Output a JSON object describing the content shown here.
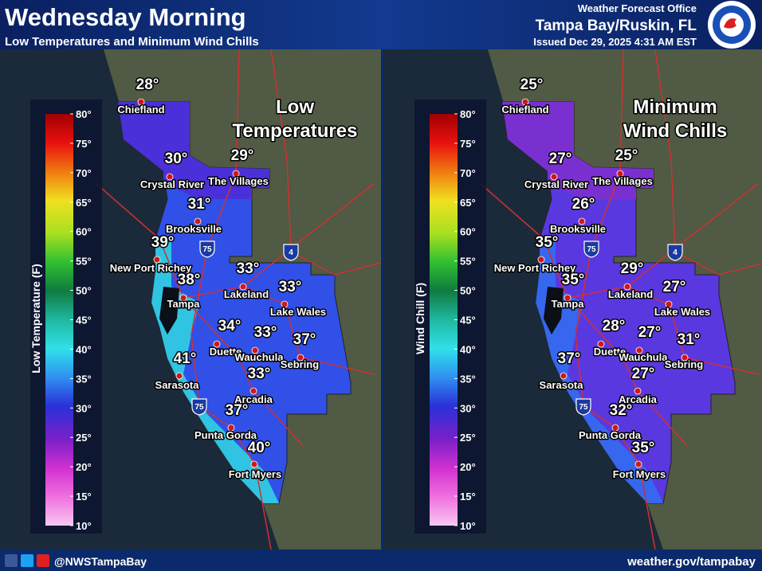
{
  "header": {
    "title": "Wednesday Morning",
    "subtitle": "Low Temperatures and Minimum Wind Chills",
    "office": "Weather Forecast Office",
    "location": "Tampa Bay/Ruskin, FL",
    "issued": "Issued Dec 29, 2025 4:31 AM EST"
  },
  "panels": [
    {
      "title_lines": [
        "Low",
        "Temperatures"
      ],
      "legend_label": "Low Temperature (F)",
      "legend_ticks": [
        "80°",
        "75°",
        "70°",
        "65°",
        "60°",
        "55°",
        "50°",
        "45°",
        "40°",
        "35°",
        "30°",
        "25°",
        "20°",
        "15°",
        "10°"
      ],
      "highway_shields": [
        "75",
        "4",
        "75"
      ],
      "cities": [
        {
          "name": "Chiefland",
          "value": "28°"
        },
        {
          "name": "Crystal River",
          "value": "30°"
        },
        {
          "name": "The Villages",
          "value": "29°"
        },
        {
          "name": "Brooksville",
          "value": "31°"
        },
        {
          "name": "New Port Richey",
          "value": "39°"
        },
        {
          "name": "Tampa",
          "value": "38°"
        },
        {
          "name": "Lakeland",
          "value": "33°"
        },
        {
          "name": "Lake Wales",
          "value": "33°"
        },
        {
          "name": "Duette",
          "value": "34°"
        },
        {
          "name": "Wauchula",
          "value": "33°"
        },
        {
          "name": "Sebring",
          "value": "37°"
        },
        {
          "name": "Sarasota",
          "value": "41°"
        },
        {
          "name": "Arcadia",
          "value": "33°"
        },
        {
          "name": "Punta Gorda",
          "value": "37°"
        },
        {
          "name": "Fort Myers",
          "value": "40°"
        }
      ]
    },
    {
      "title_lines": [
        "Minimum",
        "Wind Chills"
      ],
      "legend_label": "Wind Chill (F)",
      "legend_ticks": [
        "80°",
        "75°",
        "70°",
        "65°",
        "60°",
        "55°",
        "50°",
        "45°",
        "40°",
        "35°",
        "30°",
        "25°",
        "20°",
        "15°",
        "10°"
      ],
      "highway_shields": [
        "75",
        "4",
        "75"
      ],
      "cities": [
        {
          "name": "Chiefland",
          "value": "25°"
        },
        {
          "name": "Crystal River",
          "value": "27°"
        },
        {
          "name": "The Villages",
          "value": "25°"
        },
        {
          "name": "Brooksville",
          "value": "26°"
        },
        {
          "name": "New Port Richey",
          "value": "35°"
        },
        {
          "name": "Tampa",
          "value": "35°"
        },
        {
          "name": "Lakeland",
          "value": "29°"
        },
        {
          "name": "Lake Wales",
          "value": "27°"
        },
        {
          "name": "Duette",
          "value": "28°"
        },
        {
          "name": "Wauchula",
          "value": "27°"
        },
        {
          "name": "Sebring",
          "value": "31°"
        },
        {
          "name": "Sarasota",
          "value": "37°"
        },
        {
          "name": "Arcadia",
          "value": "27°"
        },
        {
          "name": "Punta Gorda",
          "value": "32°"
        },
        {
          "name": "Fort Myers",
          "value": "35°"
        }
      ]
    }
  ],
  "footer": {
    "handle": "@NWSTampaBay",
    "website": "weather.gov/tampabay"
  }
}
